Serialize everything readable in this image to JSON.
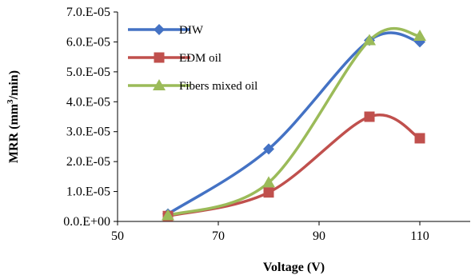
{
  "chart_data": {
    "type": "line",
    "smooth": true,
    "xlabel": "Voltage (V)",
    "ylabel_parts": [
      "MRR (mm",
      "3",
      "/min)"
    ],
    "xlim": [
      50,
      120
    ],
    "ylim": [
      0,
      7e-05
    ],
    "x_ticks": [
      50,
      70,
      90,
      110
    ],
    "x_tick_labels": [
      "50",
      "70",
      "90",
      "110"
    ],
    "y_ticks": [
      0,
      1e-05,
      2e-05,
      3e-05,
      4e-05,
      5e-05,
      6e-05,
      7e-05
    ],
    "y_tick_labels": [
      "0.0.E+00",
      "1.0.E-05",
      "2.0.E-05",
      "3.0.E-05",
      "4.0.E-05",
      "5.0.E-05",
      "6.0.E-05",
      "7.0.E-05"
    ],
    "grid": false,
    "legend_position": "top-left",
    "x": [
      60,
      80,
      100,
      110
    ],
    "series": [
      {
        "name": "DIW",
        "marker": "diamond",
        "color": "#4472C4",
        "values": [
          2.5e-06,
          2.42e-05,
          6.05e-05,
          6e-05
        ]
      },
      {
        "name": "EDM oil",
        "marker": "square",
        "color": "#C0504D",
        "values": [
          1.8e-06,
          9.7e-06,
          3.5e-05,
          2.78e-05
        ]
      },
      {
        "name": "Fibers mixed oil",
        "marker": "triangle",
        "color": "#9BBB59",
        "values": [
          2e-06,
          1.3e-05,
          6.05e-05,
          6.2e-05
        ]
      }
    ]
  }
}
